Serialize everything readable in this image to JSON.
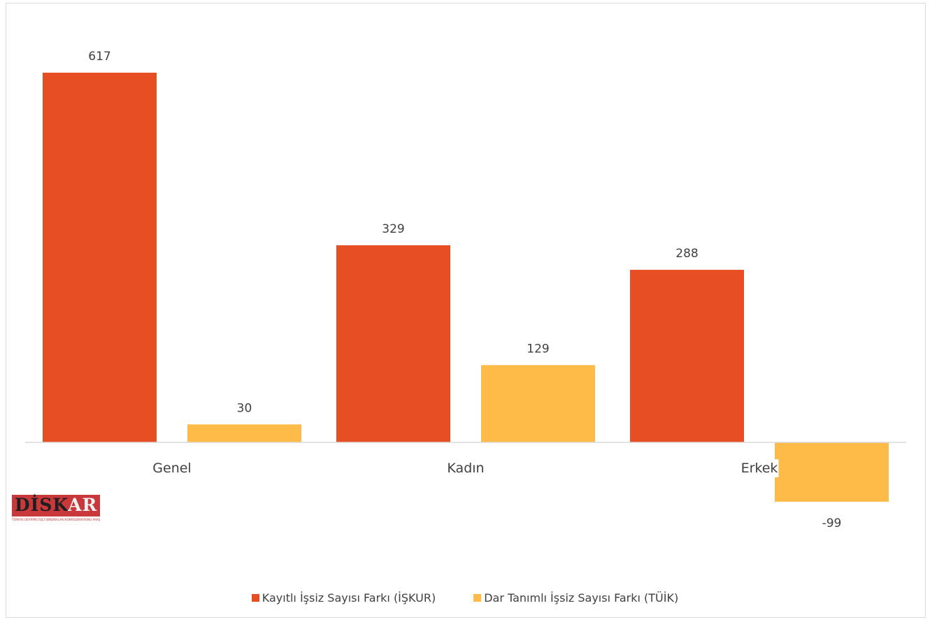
{
  "chart_data": {
    "type": "bar",
    "categories": [
      "Genel",
      "Kadın",
      "Erkek"
    ],
    "series": [
      {
        "name": "Kayıtlı İşsiz Sayısı Farkı (İŞKUR)",
        "values": [
          617,
          329,
          288
        ],
        "color": "#e84e24"
      },
      {
        "name": "Dar Tanımlı İşsiz Sayısı Farkı (TÜİK)",
        "values": [
          30,
          129,
          -99
        ],
        "color": "#ffbb47"
      }
    ],
    "data_labels": true,
    "legend": "bottom-center",
    "grid": false,
    "ylim": [
      -150,
      700
    ]
  },
  "logo": {
    "text_dark": "DİSK",
    "text_light": "AR",
    "subtitle": "TÜRKİYE DEVRİMCİ İŞÇİ SENDİKALARI KONFEDERASYONU ARAŞTIRMA MERKEZİ"
  }
}
